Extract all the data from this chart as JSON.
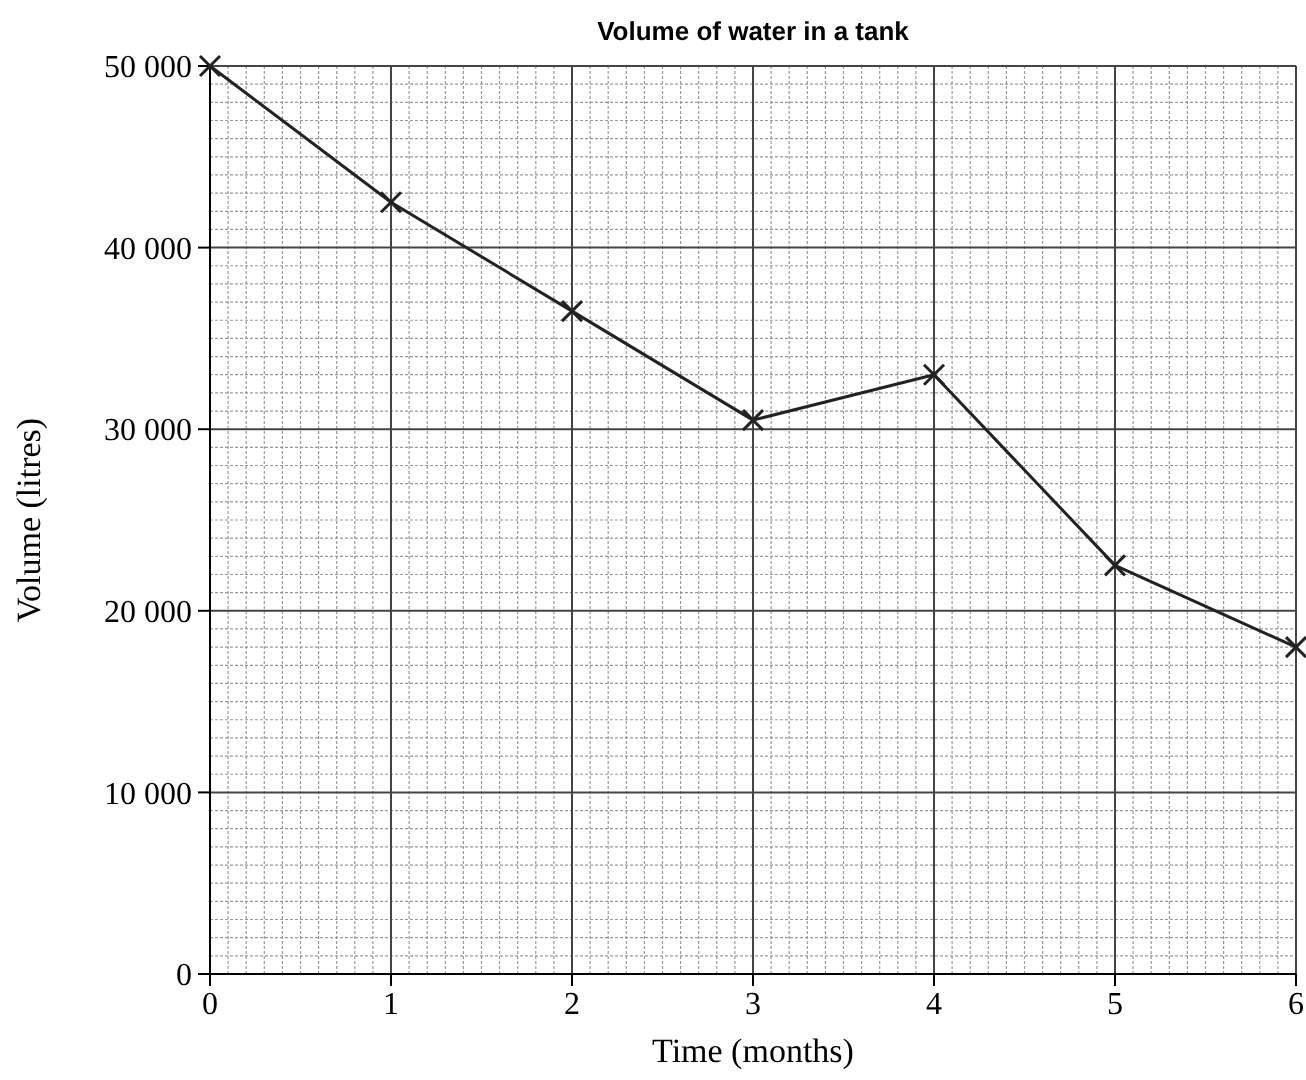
{
  "chart_data": {
    "type": "line",
    "title": "Volume of water in a tank",
    "xlabel": "Time (months)",
    "ylabel": "Volume (litres)",
    "x": [
      0,
      1,
      2,
      3,
      4,
      5,
      6
    ],
    "series": [
      {
        "color": "#222222",
        "values": [
          50000,
          42500,
          36500,
          30500,
          33000,
          22500,
          18000
        ]
      }
    ],
    "xlim": [
      0,
      6
    ],
    "xticks": [
      0,
      1,
      2,
      3,
      4,
      5,
      6
    ],
    "ylim": [
      0,
      50000
    ],
    "yticks": [
      0,
      {
        "value": 10000,
        "label": "10 000"
      },
      {
        "value": 20000,
        "label": "20 000"
      },
      {
        "value": 30000,
        "label": "30 000"
      },
      {
        "value": 40000,
        "label": "40 000"
      },
      {
        "value": 50000,
        "label": "50 000"
      }
    ],
    "grid": true,
    "marker": "cross",
    "line_style": "solid"
  }
}
